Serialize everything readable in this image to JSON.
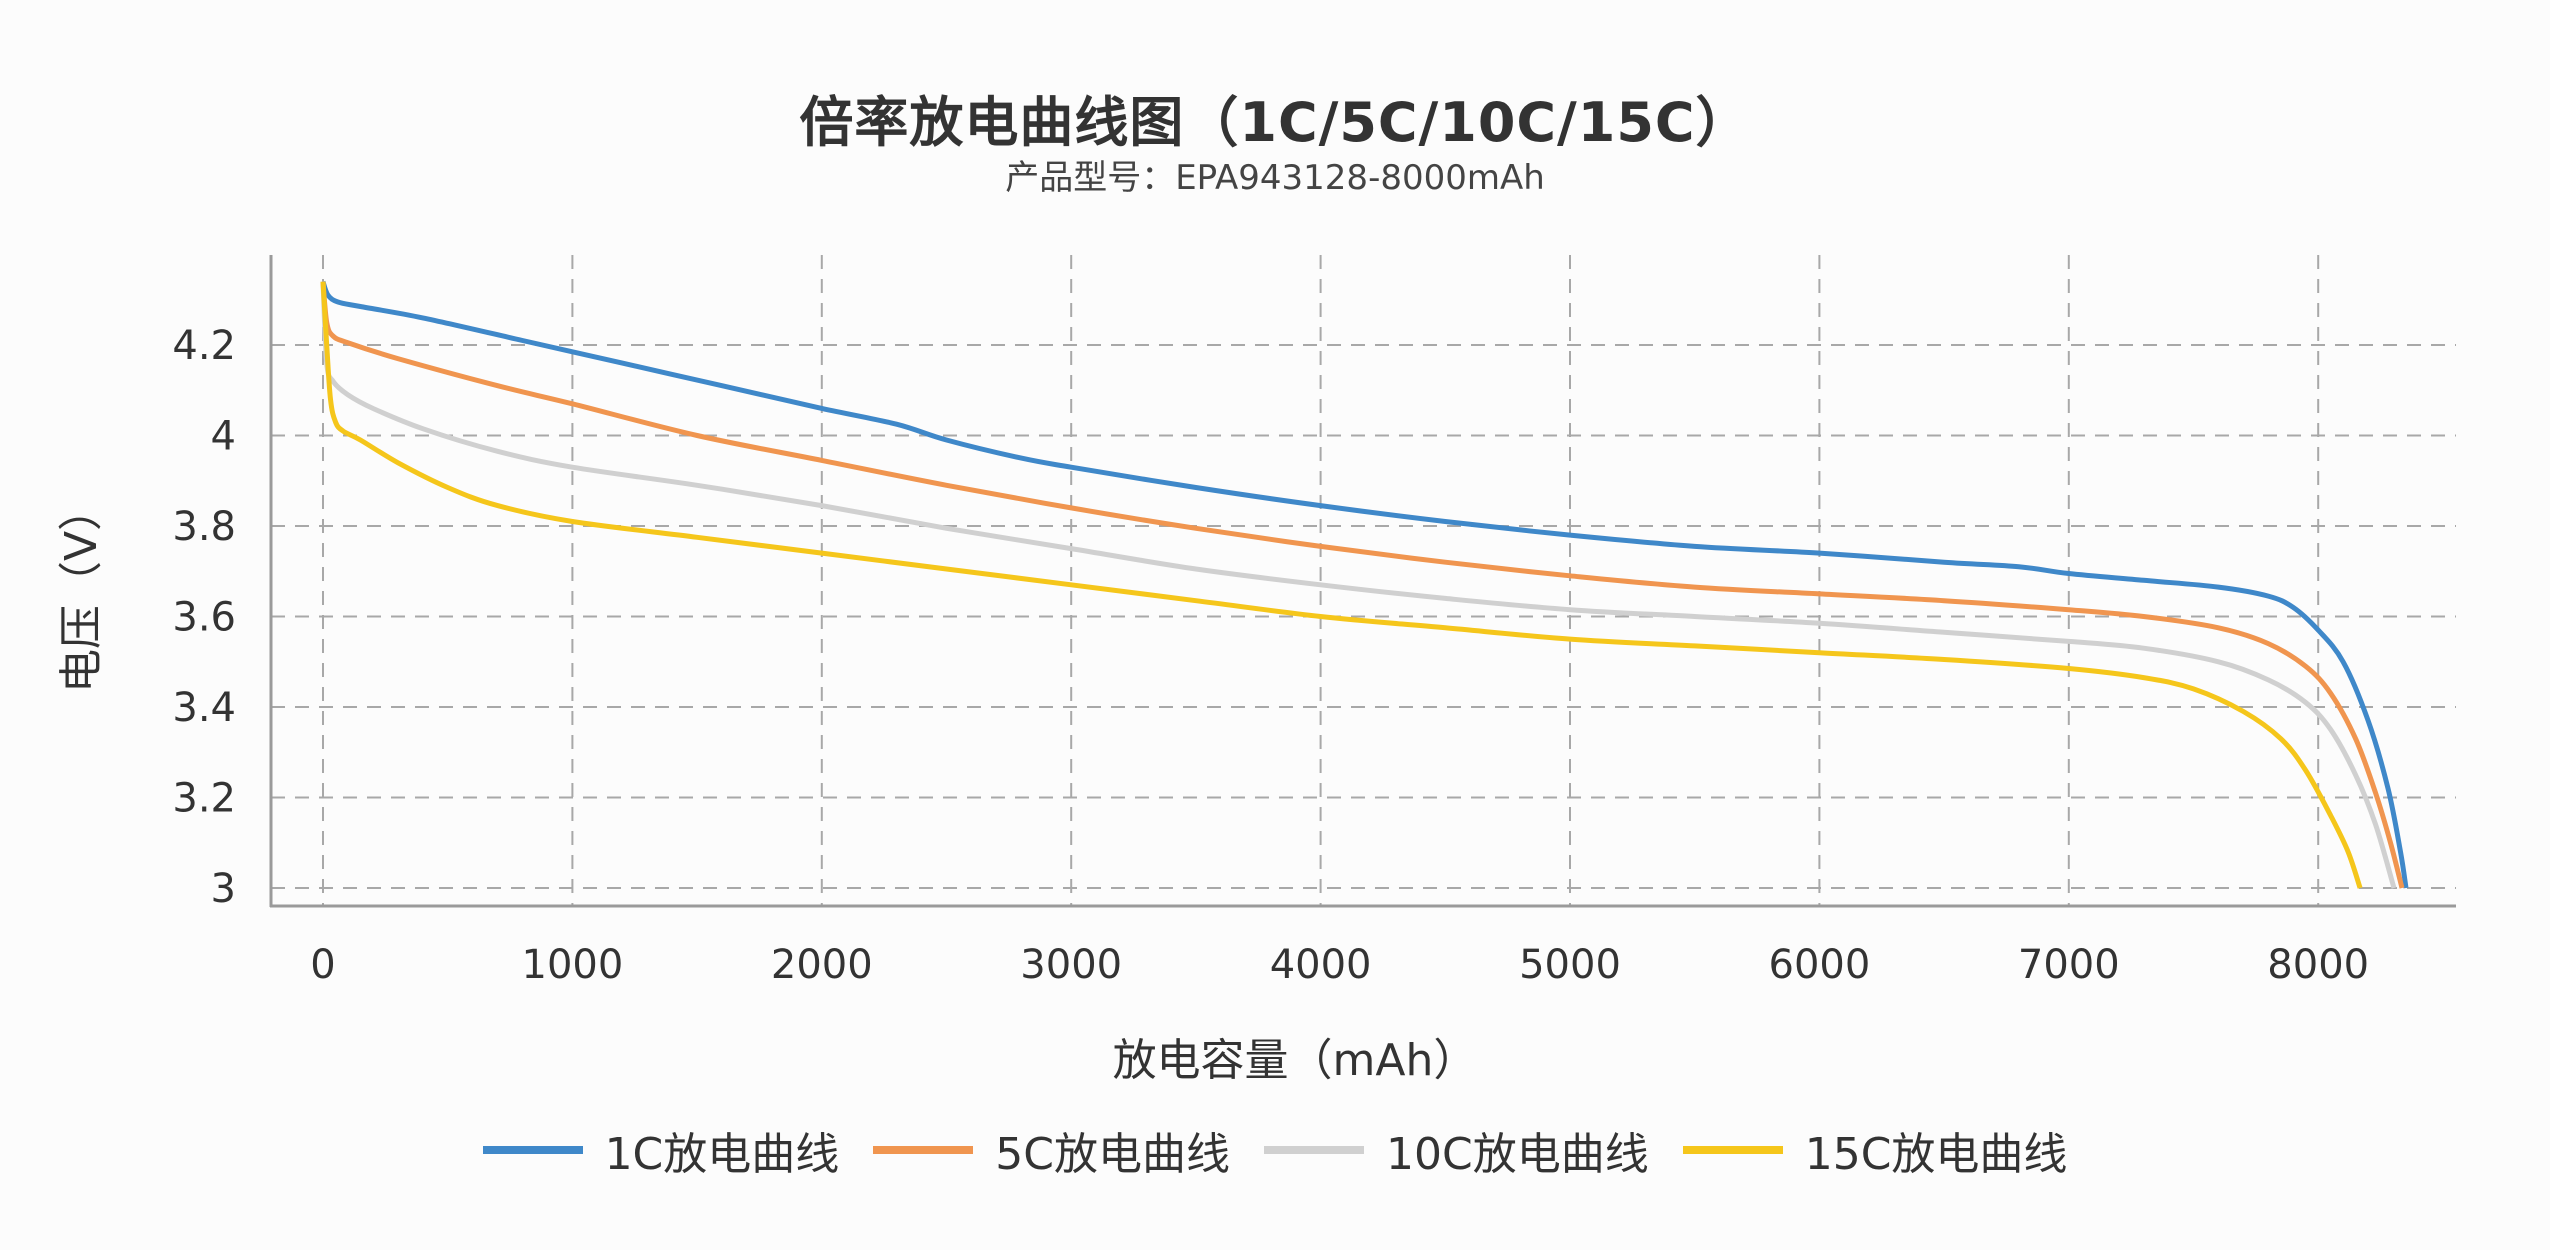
{
  "chart_data": {
    "type": "line",
    "title": "倍率放电曲线图（1C/5C/10C/15C）",
    "subtitle": "产品型号：EPA943128-8000mAh",
    "xlabel": "放电容量（mAh）",
    "ylabel": "电压（V）",
    "xlim": [
      -200,
      8600
    ],
    "ylim": [
      2.96,
      4.44
    ],
    "xticks": [
      "0",
      "1000",
      "2000",
      "3000",
      "4000",
      "5000",
      "6000",
      "7000",
      "8000"
    ],
    "xtick_values": [
      0,
      1000,
      2000,
      3000,
      4000,
      5000,
      6000,
      7000,
      8000
    ],
    "yticks": [
      "3",
      "3.2",
      "3.4",
      "3.6",
      "3.8",
      "4",
      "4.2"
    ],
    "ytick_values": [
      3,
      3.2,
      3.4,
      3.6,
      3.8,
      4,
      4.2
    ],
    "grid": true,
    "legend_position": "bottom",
    "series": [
      {
        "name": "1C放电曲线",
        "color": "#3f88c9",
        "x": [
          0,
          20,
          60,
          150,
          400,
          800,
          1200,
          1600,
          2000,
          2300,
          2500,
          2800,
          3000,
          3500,
          4000,
          4500,
          5000,
          5500,
          6000,
          6500,
          6800,
          7000,
          7300,
          7600,
          7800,
          7900,
          8000,
          8100,
          8200,
          8280,
          8330,
          8352
        ],
        "y": [
          4.34,
          4.31,
          4.295,
          4.285,
          4.26,
          4.21,
          4.16,
          4.11,
          4.06,
          4.025,
          3.99,
          3.95,
          3.93,
          3.885,
          3.845,
          3.81,
          3.78,
          3.755,
          3.74,
          3.72,
          3.71,
          3.695,
          3.68,
          3.665,
          3.645,
          3.62,
          3.57,
          3.5,
          3.37,
          3.22,
          3.08,
          3.0
        ]
      },
      {
        "name": "5C放电曲线",
        "color": "#f0954f",
        "x": [
          0,
          15,
          40,
          100,
          300,
          700,
          1000,
          1500,
          2000,
          2500,
          3000,
          3500,
          4000,
          4500,
          5000,
          5500,
          6000,
          6500,
          7000,
          7300,
          7600,
          7800,
          7950,
          8050,
          8150,
          8230,
          8290,
          8336
        ],
        "y": [
          4.34,
          4.25,
          4.22,
          4.205,
          4.17,
          4.11,
          4.07,
          4.0,
          3.945,
          3.89,
          3.84,
          3.795,
          3.755,
          3.72,
          3.69,
          3.665,
          3.65,
          3.635,
          3.615,
          3.6,
          3.575,
          3.54,
          3.49,
          3.43,
          3.33,
          3.21,
          3.1,
          3.0
        ]
      },
      {
        "name": "10C放电曲线",
        "color": "#d0d0d0",
        "x": [
          0,
          15,
          40,
          100,
          200,
          400,
          700,
          1000,
          1500,
          2000,
          2500,
          3000,
          3500,
          4000,
          4500,
          5000,
          5500,
          6000,
          6500,
          7000,
          7300,
          7600,
          7800,
          7950,
          8050,
          8150,
          8230,
          8304
        ],
        "y": [
          4.34,
          4.16,
          4.12,
          4.09,
          4.06,
          4.015,
          3.965,
          3.93,
          3.89,
          3.845,
          3.795,
          3.75,
          3.705,
          3.67,
          3.64,
          3.615,
          3.6,
          3.585,
          3.565,
          3.545,
          3.53,
          3.5,
          3.46,
          3.41,
          3.35,
          3.25,
          3.14,
          3.0
        ]
      },
      {
        "name": "15C放电曲线",
        "color": "#f5c61b",
        "x": [
          0,
          15,
          30,
          50,
          80,
          150,
          300,
          500,
          700,
          1000,
          1500,
          2000,
          2500,
          3000,
          3500,
          4000,
          4500,
          5000,
          5500,
          6000,
          6500,
          7000,
          7300,
          7500,
          7700,
          7850,
          7950,
          8050,
          8120,
          8168
        ],
        "y": [
          4.34,
          4.2,
          4.08,
          4.03,
          4.01,
          3.99,
          3.94,
          3.885,
          3.845,
          3.81,
          3.775,
          3.74,
          3.705,
          3.67,
          3.635,
          3.6,
          3.575,
          3.55,
          3.535,
          3.52,
          3.505,
          3.485,
          3.465,
          3.44,
          3.39,
          3.33,
          3.26,
          3.16,
          3.08,
          3.0
        ]
      }
    ]
  }
}
